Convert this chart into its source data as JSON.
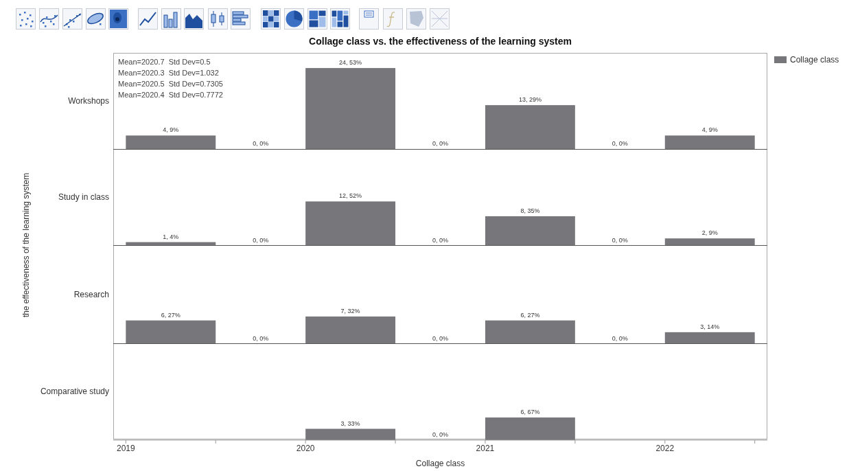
{
  "chart_data": [
    {
      "type": "bar",
      "title": "Collage class vs. the effectiveness of the learning system",
      "ylabel": "Workshops",
      "legend": "right",
      "tick_labels": false,
      "xlim": [
        2018.93,
        2022.57
      ],
      "ylim": [
        0,
        28.5
      ],
      "x": [
        2019.25,
        2019.75,
        2020.25,
        2020.75,
        2021.25,
        2021.75,
        2022.25
      ],
      "series": [
        {
          "name": "Collage class",
          "color": "#77777b",
          "values": [
            4,
            0,
            24,
            0,
            13,
            0,
            4
          ],
          "value_labels": [
            "4, 9%",
            "0, 0%",
            "24, 53%",
            "0, 0%",
            "13, 29%",
            "0, 0%",
            "4, 9%"
          ]
        }
      ],
      "annotations": [
        "Mean=2020.7  Std Dev=0.5",
        "Mean=2020.3  Std Dev=1.032",
        "Mean=2020.5  Std Dev=0.7305",
        "Mean=2020.4  Std Dev=0.7772"
      ]
    },
    {
      "type": "bar",
      "ylabel": "Study in class",
      "tick_labels": false,
      "xlim": [
        2018.93,
        2022.57
      ],
      "ylim": [
        0,
        26
      ],
      "x": [
        2019.25,
        2019.75,
        2020.25,
        2020.75,
        2021.25,
        2021.75,
        2022.25
      ],
      "series": [
        {
          "color": "#77777b",
          "values": [
            1,
            0,
            12,
            0,
            8,
            0,
            2
          ],
          "value_labels": [
            "1, 4%",
            "0, 0%",
            "12, 52%",
            "0, 0%",
            "8, 35%",
            "0, 0%",
            "2, 9%"
          ]
        }
      ],
      "annotations": [
        "the effectiveness of the learning system"
      ]
    },
    {
      "type": "bar",
      "ylabel": "Research",
      "tick_labels": false,
      "xlim": [
        2018.93,
        2022.57
      ],
      "ylim": [
        0,
        25
      ],
      "x": [
        2019.25,
        2019.75,
        2020.25,
        2020.75,
        2021.25,
        2021.75,
        2022.25
      ],
      "series": [
        {
          "color": "#77777b",
          "values": [
            6,
            0,
            7,
            0,
            6,
            0,
            3
          ],
          "value_labels": [
            "6, 27%",
            "0, 0%",
            "7, 32%",
            "0, 0%",
            "6, 27%",
            "0, 0%",
            "3, 14%"
          ]
        }
      ]
    },
    {
      "type": "bar",
      "ylabel": "Comparative study",
      "xlabel": "Collage class",
      "tick_labels": "x",
      "xlim": [
        2018.93,
        2022.57
      ],
      "ylim": [
        0,
        25.5
      ],
      "x": [
        2020.25,
        2020.75,
        2021.25
      ],
      "xticks": [
        2019,
        {
          "value": 2019.5,
          "label": null
        },
        2020,
        {
          "value": 2020.5,
          "label": null
        },
        2021,
        {
          "value": 2021.5,
          "label": null
        },
        2022,
        {
          "value": 2022.5,
          "label": null
        }
      ],
      "series": [
        {
          "color": "#77777b",
          "values": [
            3,
            0,
            6
          ],
          "value_labels": [
            "3, 33%",
            "0, 0%",
            "6, 67%"
          ]
        }
      ]
    }
  ]
}
